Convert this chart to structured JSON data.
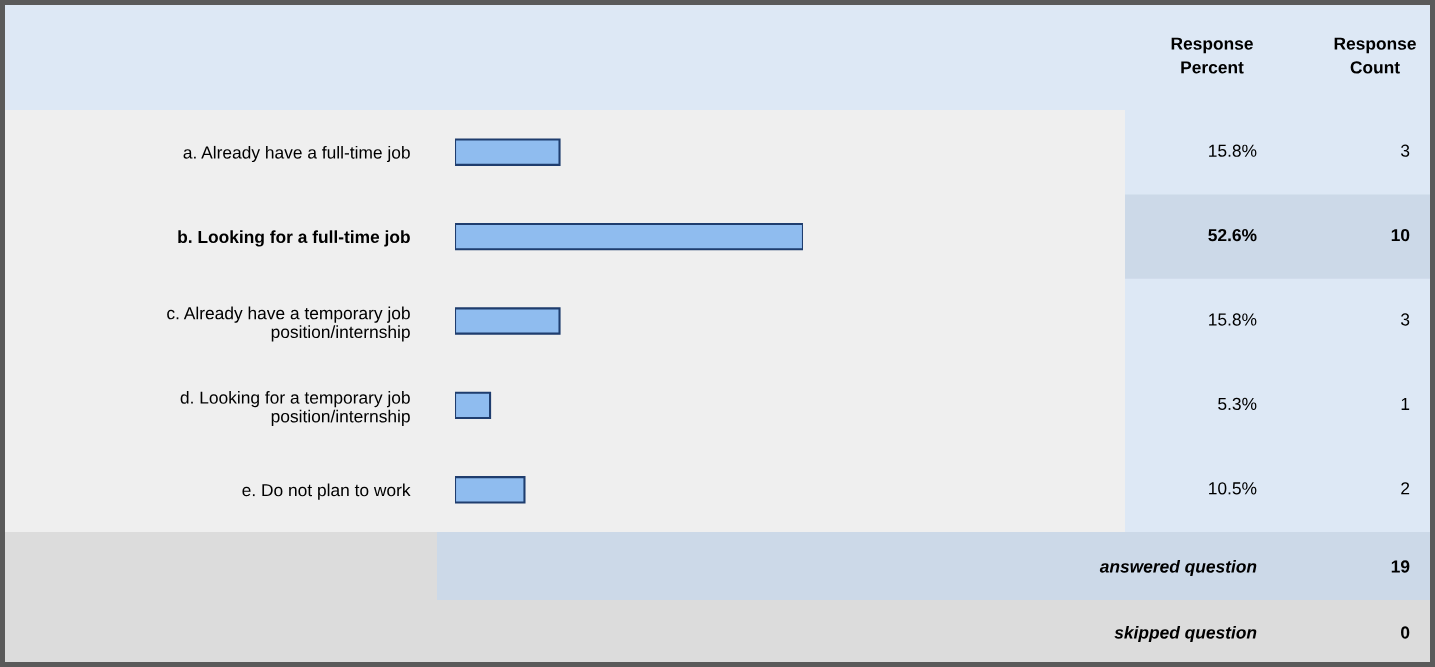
{
  "chart_data": {
    "type": "bar",
    "orientation": "horizontal",
    "categories": [
      "a. Already have a full-time job",
      "b. Looking for a full-time job",
      "c. Already have a temporary job\nposition/internship",
      "d. Looking for a temporary job\nposition/internship",
      "e. Do not plan to work"
    ],
    "values": [
      15.8,
      52.6,
      15.8,
      5.3,
      10.5
    ],
    "value_labels": [
      "15.8%",
      "52.6%",
      "15.8%",
      "5.3%",
      "10.5%"
    ],
    "color": "#8fbcef",
    "grid": false,
    "legend": false,
    "annotations": [
      "Response Percent",
      "Response Count",
      "answered question",
      "19",
      "skipped question",
      "0",
      "3",
      "10",
      "3",
      "1",
      "2"
    ]
  }
}
